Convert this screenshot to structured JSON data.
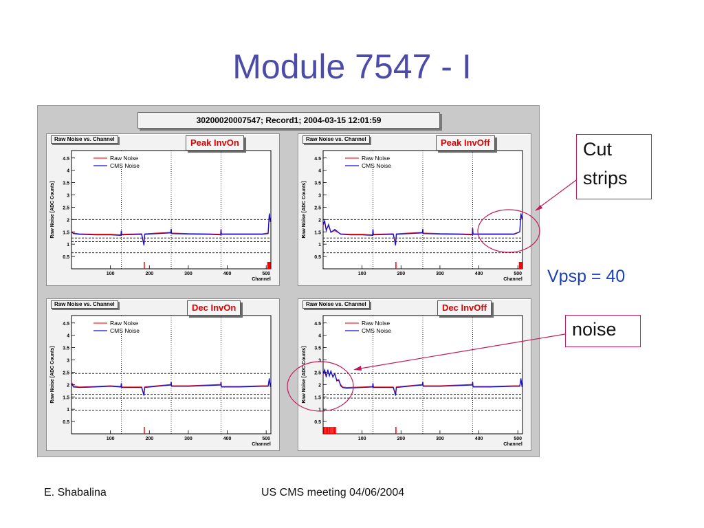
{
  "slide": {
    "title": "Module 7547 - I",
    "figure_title": "30200020007547; Record1; 2004-03-15 12:01:59",
    "callouts": {
      "cut_strips": [
        "Cut",
        "strips"
      ],
      "noise": "noise",
      "vpsp": "Vpsp = 40"
    },
    "footer": {
      "author": "E. Shabalina",
      "meeting": "US CMS meeting 04/06/2004"
    },
    "colors": {
      "title": "#4c4ca8",
      "raw_noise": "#ff2020",
      "cms_noise": "#1010d0",
      "annotation": "#c2185b",
      "vpsp": "#1b3fb8"
    }
  },
  "chart_data": [
    {
      "type": "line",
      "hist_label": "Raw Noise vs. Channel",
      "title": "Peak InvOn",
      "xlabel": "Channel",
      "ylabel": "Raw Noise [ADC Counts]",
      "xlim": [
        0,
        512
      ],
      "ylim": [
        0,
        4.8
      ],
      "xticks": [
        100,
        200,
        300,
        400,
        500
      ],
      "yticks": [
        0.5,
        1,
        1.5,
        2,
        2.5,
        3,
        3.5,
        4,
        4.5
      ],
      "legend": [
        "Raw Noise",
        "CMS Noise"
      ],
      "series": [
        {
          "name": "Raw Noise",
          "points": [
            [
              0,
              1.5
            ],
            [
              5,
              1.45
            ],
            [
              20,
              1.42
            ],
            [
              60,
              1.4
            ],
            [
              100,
              1.4
            ],
            [
              127,
              1.38
            ],
            [
              128,
              1.55
            ],
            [
              129,
              1.4
            ],
            [
              180,
              1.42
            ],
            [
              186,
              1.0
            ],
            [
              188,
              1.42
            ],
            [
              220,
              1.45
            ],
            [
              255,
              1.48
            ],
            [
              256,
              1.62
            ],
            [
              257,
              1.45
            ],
            [
              300,
              1.43
            ],
            [
              350,
              1.42
            ],
            [
              383,
              1.4
            ],
            [
              384,
              1.6
            ],
            [
              385,
              1.42
            ],
            [
              430,
              1.42
            ],
            [
              490,
              1.42
            ],
            [
              505,
              1.45
            ],
            [
              508,
              2.2
            ],
            [
              511,
              1.9
            ]
          ]
        },
        {
          "name": "CMS Noise",
          "points": [
            [
              0,
              1.5
            ],
            [
              5,
              1.43
            ],
            [
              20,
              1.4
            ],
            [
              60,
              1.38
            ],
            [
              100,
              1.38
            ],
            [
              127,
              1.36
            ],
            [
              128,
              1.55
            ],
            [
              129,
              1.38
            ],
            [
              180,
              1.4
            ],
            [
              186,
              0.95
            ],
            [
              188,
              1.4
            ],
            [
              220,
              1.43
            ],
            [
              255,
              1.46
            ],
            [
              256,
              1.62
            ],
            [
              257,
              1.43
            ],
            [
              300,
              1.41
            ],
            [
              350,
              1.4
            ],
            [
              383,
              1.38
            ],
            [
              384,
              1.6
            ],
            [
              385,
              1.4
            ],
            [
              430,
              1.4
            ],
            [
              490,
              1.4
            ],
            [
              505,
              1.43
            ],
            [
              508,
              2.25
            ],
            [
              511,
              1.9
            ]
          ]
        }
      ],
      "hlines": [
        2.0,
        1.25,
        1.1,
        0.65
      ],
      "vlines": [
        128,
        256,
        384
      ],
      "cut_markers": [
        187,
        504,
        506,
        508,
        510
      ]
    },
    {
      "type": "line",
      "hist_label": "Raw Noise vs. Channel",
      "title": "Peak InvOff",
      "xlabel": "Channel",
      "ylabel": "Raw Noise [ADC Counts]",
      "xlim": [
        0,
        512
      ],
      "ylim": [
        0,
        4.8
      ],
      "xticks": [
        100,
        200,
        300,
        400,
        500
      ],
      "yticks": [
        0.5,
        1,
        1.5,
        2,
        2.5,
        3,
        3.5,
        4,
        4.5
      ],
      "legend": [
        "Raw Noise",
        "CMS Noise"
      ],
      "series": [
        {
          "name": "Raw Noise",
          "points": [
            [
              0,
              1.75
            ],
            [
              4,
              1.9
            ],
            [
              8,
              1.6
            ],
            [
              14,
              1.75
            ],
            [
              20,
              1.5
            ],
            [
              30,
              1.55
            ],
            [
              45,
              1.42
            ],
            [
              70,
              1.4
            ],
            [
              100,
              1.4
            ],
            [
              127,
              1.38
            ],
            [
              128,
              1.6
            ],
            [
              129,
              1.4
            ],
            [
              180,
              1.42
            ],
            [
              186,
              1.0
            ],
            [
              188,
              1.42
            ],
            [
              220,
              1.45
            ],
            [
              255,
              1.48
            ],
            [
              256,
              1.62
            ],
            [
              257,
              1.45
            ],
            [
              300,
              1.43
            ],
            [
              350,
              1.42
            ],
            [
              383,
              1.4
            ],
            [
              384,
              1.65
            ],
            [
              385,
              1.42
            ],
            [
              430,
              1.42
            ],
            [
              490,
              1.42
            ],
            [
              505,
              1.5
            ],
            [
              508,
              2.2
            ],
            [
              511,
              2.0
            ]
          ]
        },
        {
          "name": "CMS Noise",
          "points": [
            [
              0,
              1.8
            ],
            [
              4,
              1.95
            ],
            [
              8,
              1.55
            ],
            [
              14,
              1.8
            ],
            [
              20,
              1.48
            ],
            [
              30,
              1.6
            ],
            [
              45,
              1.4
            ],
            [
              70,
              1.38
            ],
            [
              100,
              1.38
            ],
            [
              127,
              1.36
            ],
            [
              128,
              1.6
            ],
            [
              129,
              1.38
            ],
            [
              180,
              1.4
            ],
            [
              186,
              0.95
            ],
            [
              188,
              1.4
            ],
            [
              220,
              1.43
            ],
            [
              255,
              1.46
            ],
            [
              256,
              1.62
            ],
            [
              257,
              1.43
            ],
            [
              300,
              1.41
            ],
            [
              350,
              1.4
            ],
            [
              383,
              1.38
            ],
            [
              384,
              1.65
            ],
            [
              385,
              1.4
            ],
            [
              430,
              1.4
            ],
            [
              490,
              1.4
            ],
            [
              505,
              1.5
            ],
            [
              508,
              2.25
            ],
            [
              511,
              2.0
            ]
          ]
        }
      ],
      "hlines": [
        2.0,
        1.25,
        1.1,
        0.65
      ],
      "vlines": [
        128,
        256,
        384
      ],
      "cut_markers": [
        187,
        504,
        506,
        508,
        510
      ]
    },
    {
      "type": "line",
      "hist_label": "Raw Noise vs. Channel",
      "title": "Dec InvOn",
      "xlabel": "Channel",
      "ylabel": "Raw Noise [ADC Counts]",
      "xlim": [
        0,
        512
      ],
      "ylim": [
        0,
        4.8
      ],
      "xticks": [
        100,
        200,
        300,
        400,
        500
      ],
      "yticks": [
        0.5,
        1,
        1.5,
        2,
        2.5,
        3,
        3.5,
        4,
        4.5
      ],
      "legend": [
        "Raw Noise",
        "CMS Noise"
      ],
      "series": [
        {
          "name": "Raw Noise",
          "points": [
            [
              0,
              2.1
            ],
            [
              5,
              1.95
            ],
            [
              20,
              1.9
            ],
            [
              60,
              1.92
            ],
            [
              100,
              1.95
            ],
            [
              127,
              1.92
            ],
            [
              128,
              2.05
            ],
            [
              129,
              1.9
            ],
            [
              180,
              1.9
            ],
            [
              186,
              1.6
            ],
            [
              188,
              1.9
            ],
            [
              220,
              1.95
            ],
            [
              255,
              2.0
            ],
            [
              256,
              2.1
            ],
            [
              257,
              1.95
            ],
            [
              300,
              1.95
            ],
            [
              350,
              1.98
            ],
            [
              383,
              2.0
            ],
            [
              384,
              2.1
            ],
            [
              385,
              1.92
            ],
            [
              430,
              1.92
            ],
            [
              490,
              1.95
            ],
            [
              505,
              1.95
            ],
            [
              508,
              2.2
            ],
            [
              511,
              1.9
            ]
          ]
        },
        {
          "name": "CMS Noise",
          "points": [
            [
              0,
              2.05
            ],
            [
              5,
              1.9
            ],
            [
              20,
              1.88
            ],
            [
              60,
              1.9
            ],
            [
              100,
              1.93
            ],
            [
              127,
              1.9
            ],
            [
              128,
              2.05
            ],
            [
              129,
              1.88
            ],
            [
              180,
              1.88
            ],
            [
              186,
              1.55
            ],
            [
              188,
              1.88
            ],
            [
              220,
              1.93
            ],
            [
              255,
              1.98
            ],
            [
              256,
              2.1
            ],
            [
              257,
              1.93
            ],
            [
              300,
              1.93
            ],
            [
              350,
              1.96
            ],
            [
              383,
              1.98
            ],
            [
              384,
              2.1
            ],
            [
              385,
              1.9
            ],
            [
              430,
              1.9
            ],
            [
              490,
              1.93
            ],
            [
              505,
              1.93
            ],
            [
              508,
              2.25
            ],
            [
              511,
              1.9
            ]
          ]
        }
      ],
      "hlines": [
        2.45,
        1.6,
        1.45,
        0.95
      ],
      "vlines": [
        128,
        256,
        384
      ],
      "cut_markers": [
        187
      ]
    },
    {
      "type": "line",
      "hist_label": "Raw Noise vs. Channel",
      "title": "Dec InvOff",
      "xlabel": "Channel",
      "ylabel": "Raw Noise [ADC Counts]",
      "xlim": [
        0,
        512
      ],
      "ylim": [
        0,
        4.8
      ],
      "xticks": [
        100,
        200,
        300,
        400,
        500
      ],
      "yticks": [
        0.5,
        1,
        1.5,
        2,
        2.5,
        3,
        3.5,
        4,
        4.5
      ],
      "legend": [
        "Raw Noise",
        "CMS Noise"
      ],
      "series": [
        {
          "name": "Raw Noise",
          "points": [
            [
              0,
              2.4
            ],
            [
              4,
              2.55
            ],
            [
              8,
              2.35
            ],
            [
              12,
              2.55
            ],
            [
              16,
              2.4
            ],
            [
              20,
              2.5
            ],
            [
              25,
              2.35
            ],
            [
              30,
              2.4
            ],
            [
              35,
              2.2
            ],
            [
              40,
              2.15
            ],
            [
              45,
              2.0
            ],
            [
              50,
              1.9
            ],
            [
              60,
              1.88
            ],
            [
              100,
              1.9
            ],
            [
              127,
              1.92
            ],
            [
              128,
              2.05
            ],
            [
              129,
              1.9
            ],
            [
              180,
              1.9
            ],
            [
              186,
              1.6
            ],
            [
              188,
              1.9
            ],
            [
              220,
              1.95
            ],
            [
              255,
              2.0
            ],
            [
              256,
              2.1
            ],
            [
              257,
              1.95
            ],
            [
              300,
              1.95
            ],
            [
              350,
              1.98
            ],
            [
              383,
              2.0
            ],
            [
              384,
              2.1
            ],
            [
              385,
              1.92
            ],
            [
              430,
              1.92
            ],
            [
              490,
              1.95
            ],
            [
              505,
              1.95
            ],
            [
              508,
              2.2
            ],
            [
              511,
              1.9
            ]
          ]
        },
        {
          "name": "CMS Noise",
          "points": [
            [
              0,
              2.45
            ],
            [
              4,
              2.6
            ],
            [
              8,
              2.3
            ],
            [
              12,
              2.6
            ],
            [
              16,
              2.35
            ],
            [
              20,
              2.55
            ],
            [
              25,
              2.3
            ],
            [
              30,
              2.45
            ],
            [
              35,
              2.15
            ],
            [
              40,
              2.2
            ],
            [
              45,
              1.95
            ],
            [
              50,
              1.88
            ],
            [
              60,
              1.85
            ],
            [
              100,
              1.88
            ],
            [
              127,
              1.9
            ],
            [
              128,
              2.05
            ],
            [
              129,
              1.88
            ],
            [
              180,
              1.88
            ],
            [
              186,
              1.55
            ],
            [
              188,
              1.88
            ],
            [
              220,
              1.93
            ],
            [
              255,
              1.98
            ],
            [
              256,
              2.1
            ],
            [
              257,
              1.93
            ],
            [
              300,
              1.93
            ],
            [
              350,
              1.96
            ],
            [
              383,
              1.98
            ],
            [
              384,
              2.1
            ],
            [
              385,
              1.9
            ],
            [
              430,
              1.9
            ],
            [
              490,
              1.93
            ],
            [
              505,
              1.93
            ],
            [
              508,
              2.25
            ],
            [
              511,
              1.9
            ]
          ]
        }
      ],
      "hlines": [
        2.45,
        1.6,
        1.45,
        0.95
      ],
      "vlines": [
        128,
        256,
        384
      ],
      "cut_markers": [
        2,
        5,
        8,
        11,
        14,
        17,
        20,
        23,
        26,
        29,
        32,
        187
      ]
    }
  ]
}
